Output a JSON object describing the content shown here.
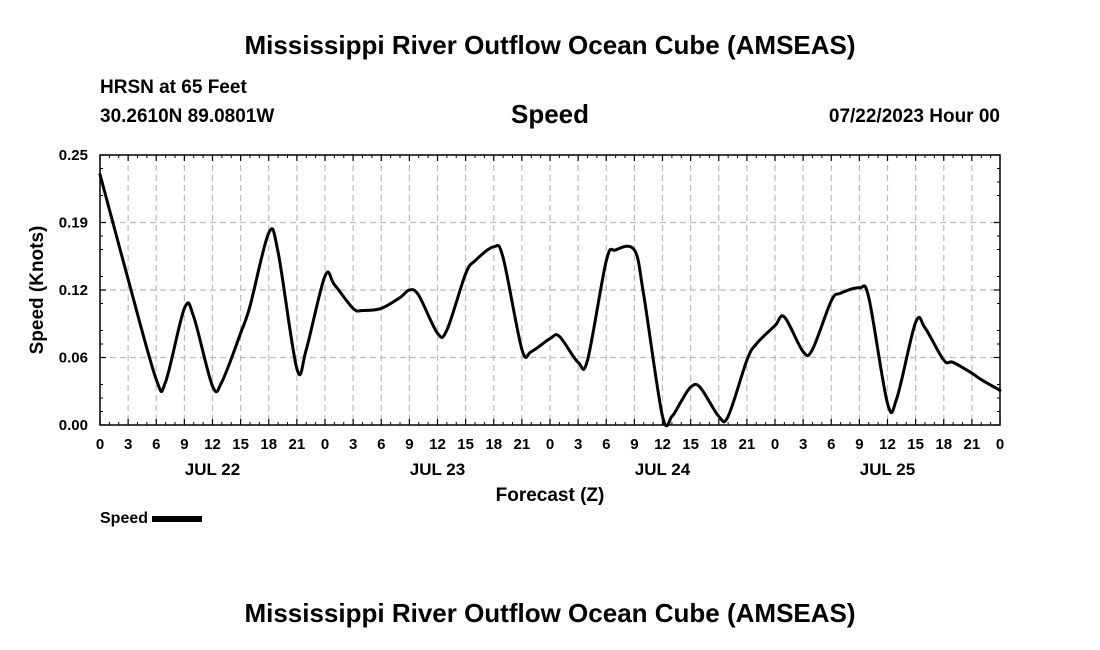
{
  "page": {
    "title_top": "Mississippi River Outflow Ocean Cube (AMSEAS)",
    "title_bottom": "Mississippi River Outflow Ocean Cube (AMSEAS)",
    "station": "HRSN at 65 Feet",
    "coords": "30.2610N  89.0801W",
    "plot_title": "Speed",
    "date": "07/22/2023 Hour 00"
  },
  "legend": {
    "label": "Speed"
  },
  "chart_data": {
    "type": "line",
    "title": "Speed",
    "xlabel": "Forecast (Z)",
    "ylabel": "Speed (Knots)",
    "xlim": [
      0,
      96
    ],
    "ylim": [
      0,
      0.25
    ],
    "yticks": [
      0.0,
      0.0625,
      0.125,
      0.1875,
      0.25
    ],
    "ytick_labels": [
      "0.00",
      "0.06",
      "0.12",
      "0.19",
      "0.25"
    ],
    "xtick_hours": [
      0,
      3,
      6,
      9,
      12,
      15,
      18,
      21,
      24,
      27,
      30,
      33,
      36,
      39,
      42,
      45,
      48,
      51,
      54,
      57,
      60,
      63,
      66,
      69,
      72,
      75,
      78,
      81,
      84,
      87,
      90,
      93,
      96
    ],
    "xtick_labels": [
      "0",
      "3",
      "6",
      "9",
      "12",
      "15",
      "18",
      "21",
      "0",
      "3",
      "6",
      "9",
      "12",
      "15",
      "18",
      "21",
      "0",
      "3",
      "6",
      "9",
      "12",
      "15",
      "18",
      "21",
      "0",
      "3",
      "6",
      "9",
      "12",
      "15",
      "18",
      "21",
      "0"
    ],
    "day_labels": [
      {
        "hour": 12,
        "label": "JUL 22"
      },
      {
        "hour": 36,
        "label": "JUL 23"
      },
      {
        "hour": 60,
        "label": "JUL 24"
      },
      {
        "hour": 84,
        "label": "JUL 25"
      }
    ],
    "grid": true,
    "series": [
      {
        "name": "Speed",
        "color": "#000000",
        "x": [
          0,
          3,
          6,
          7,
          9,
          10,
          12,
          13,
          15,
          16,
          18,
          19,
          21,
          22,
          24,
          25,
          27,
          28,
          30,
          32,
          33,
          34,
          36,
          37,
          39,
          40,
          42,
          43,
          45,
          46,
          48,
          49,
          51,
          52,
          54,
          55,
          57,
          58,
          60,
          61,
          62,
          63,
          64,
          66,
          67,
          69,
          70,
          72,
          73,
          75,
          76,
          78,
          79,
          81,
          82,
          84,
          85,
          87,
          88,
          90,
          91,
          93,
          94,
          96
        ],
        "y": [
          0.232,
          0.135,
          0.042,
          0.04,
          0.108,
          0.1,
          0.036,
          0.04,
          0.085,
          0.11,
          0.178,
          0.16,
          0.052,
          0.07,
          0.138,
          0.13,
          0.108,
          0.106,
          0.108,
          0.118,
          0.125,
          0.12,
          0.085,
          0.088,
          0.14,
          0.152,
          0.165,
          0.155,
          0.07,
          0.068,
          0.08,
          0.082,
          0.058,
          0.06,
          0.152,
          0.162,
          0.162,
          0.12,
          0.008,
          0.008,
          0.022,
          0.035,
          0.035,
          0.008,
          0.008,
          0.06,
          0.075,
          0.092,
          0.1,
          0.068,
          0.07,
          0.115,
          0.122,
          0.127,
          0.118,
          0.02,
          0.025,
          0.095,
          0.09,
          0.06,
          0.058,
          0.048,
          0.042,
          0.032
        ]
      }
    ]
  }
}
